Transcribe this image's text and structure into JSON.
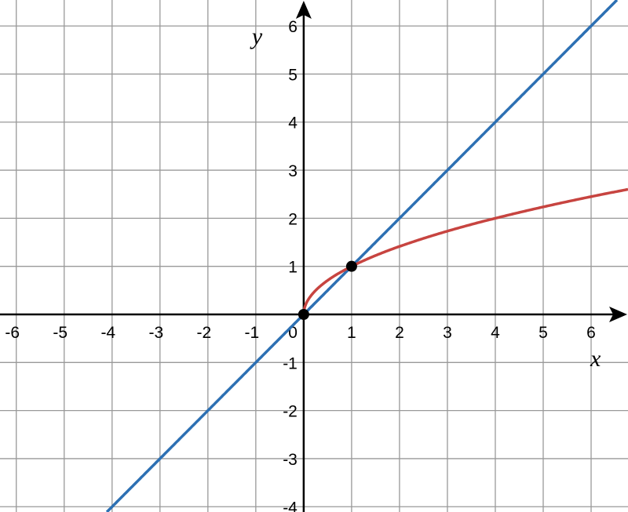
{
  "chart_data": {
    "type": "line",
    "xlabel": "x",
    "ylabel": "y",
    "xlim": [
      -6.34,
      6.77
    ],
    "ylim": [
      -4.11,
      6.54
    ],
    "grid": true,
    "x_ticks": [
      "-6",
      "-5",
      "-4",
      "-3",
      "-2",
      "-1",
      "1",
      "2",
      "3",
      "4",
      "5",
      "6"
    ],
    "y_ticks": [
      "-4",
      "-3",
      "-2",
      "-1",
      "1",
      "2",
      "3",
      "4",
      "5",
      "6"
    ],
    "origin_label": "0",
    "series": [
      {
        "expression": "y = x",
        "color": "#2d70b3"
      },
      {
        "expression": "y = sqrt(x)",
        "color": "#c74440"
      }
    ],
    "points": [
      {
        "x": 0,
        "y": 0,
        "color": "#000000"
      },
      {
        "x": 1,
        "y": 1,
        "color": "#000000"
      }
    ]
  }
}
